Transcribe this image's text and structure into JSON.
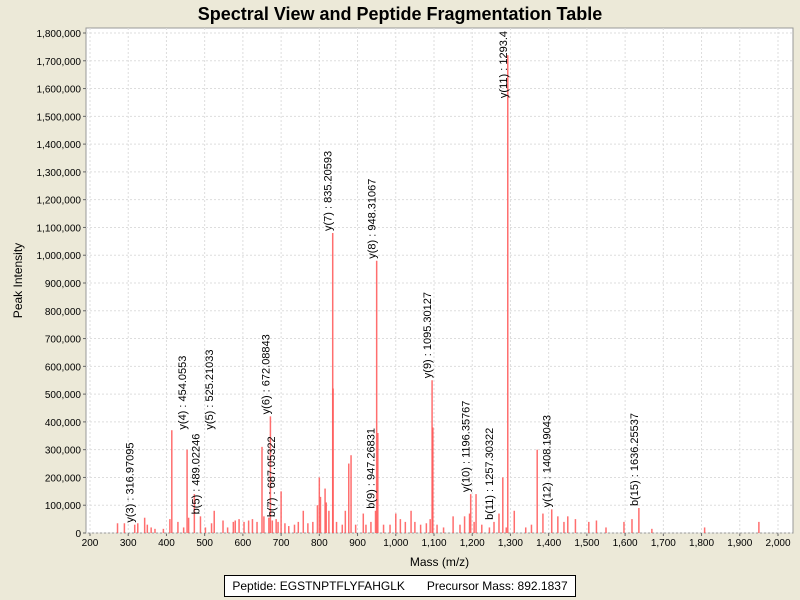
{
  "chart_data": {
    "type": "bar",
    "title": "Spectral View and Peptide Fragmentation Table",
    "xlabel": "Mass (m/z)",
    "ylabel": "Peak Intensity",
    "xlim": [
      180,
      2010
    ],
    "ylim": [
      0,
      1830000
    ],
    "xticks": [
      200,
      300,
      400,
      500,
      600,
      700,
      800,
      900,
      1000,
      1100,
      1200,
      1300,
      1400,
      1500,
      1600,
      1700,
      1800,
      1900,
      2000
    ],
    "xtick_labels": [
      "200",
      "300",
      "400",
      "500",
      "600",
      "700",
      "800",
      "900",
      "1,000",
      "1,100",
      "1,200",
      "1,300",
      "1,400",
      "1,500",
      "1,600",
      "1,700",
      "1,800",
      "1,900",
      "2,000"
    ],
    "yticks": [
      0,
      100000,
      200000,
      300000,
      400000,
      500000,
      600000,
      700000,
      800000,
      900000,
      1000000,
      1100000,
      1200000,
      1300000,
      1400000,
      1500000,
      1600000,
      1700000,
      1800000
    ],
    "ytick_labels": [
      "0",
      "100,000",
      "200,000",
      "300,000",
      "400,000",
      "500,000",
      "600,000",
      "700,000",
      "800,000",
      "900,000",
      "1,000,000",
      "1,100,000",
      "1,200,000",
      "1,300,000",
      "1,400,000",
      "1,500,000",
      "1,600,000",
      "1,700,000",
      "1,800,000"
    ],
    "grid": true,
    "peaks": [
      [
        272,
        35000
      ],
      [
        290,
        35000
      ],
      [
        317,
        30000
      ],
      [
        325,
        35000
      ],
      [
        343,
        55000
      ],
      [
        350,
        30000
      ],
      [
        360,
        20000
      ],
      [
        370,
        15000
      ],
      [
        392,
        15000
      ],
      [
        409,
        50000
      ],
      [
        414,
        370000
      ],
      [
        430,
        40000
      ],
      [
        445,
        20000
      ],
      [
        454,
        300000
      ],
      [
        458,
        55000
      ],
      [
        473,
        140000
      ],
      [
        489,
        60000
      ],
      [
        502,
        20000
      ],
      [
        518,
        35000
      ],
      [
        525,
        80000
      ],
      [
        548,
        45000
      ],
      [
        560,
        20000
      ],
      [
        575,
        40000
      ],
      [
        580,
        45000
      ],
      [
        590,
        50000
      ],
      [
        603,
        40000
      ],
      [
        615,
        45000
      ],
      [
        625,
        50000
      ],
      [
        637,
        40000
      ],
      [
        650,
        310000
      ],
      [
        655,
        60000
      ],
      [
        668,
        55000
      ],
      [
        672,
        420000
      ],
      [
        677,
        45000
      ],
      [
        687,
        50000
      ],
      [
        692,
        40000
      ],
      [
        700,
        150000
      ],
      [
        710,
        35000
      ],
      [
        720,
        25000
      ],
      [
        735,
        30000
      ],
      [
        745,
        40000
      ],
      [
        758,
        80000
      ],
      [
        770,
        35000
      ],
      [
        783,
        40000
      ],
      [
        795,
        100000
      ],
      [
        800,
        200000
      ],
      [
        803,
        130000
      ],
      [
        815,
        160000
      ],
      [
        818,
        110000
      ],
      [
        825,
        80000
      ],
      [
        835,
        1080000
      ],
      [
        836,
        520000
      ],
      [
        845,
        40000
      ],
      [
        860,
        30000
      ],
      [
        868,
        80000
      ],
      [
        877,
        250000
      ],
      [
        883,
        280000
      ],
      [
        895,
        30000
      ],
      [
        915,
        70000
      ],
      [
        922,
        30000
      ],
      [
        935,
        40000
      ],
      [
        947,
        80000
      ],
      [
        950,
        980000
      ],
      [
        953,
        360000
      ],
      [
        968,
        30000
      ],
      [
        985,
        30000
      ],
      [
        1000,
        70000
      ],
      [
        1012,
        50000
      ],
      [
        1025,
        40000
      ],
      [
        1040,
        80000
      ],
      [
        1050,
        40000
      ],
      [
        1065,
        30000
      ],
      [
        1080,
        35000
      ],
      [
        1090,
        50000
      ],
      [
        1095,
        550000
      ],
      [
        1097,
        380000
      ],
      [
        1108,
        30000
      ],
      [
        1125,
        20000
      ],
      [
        1150,
        60000
      ],
      [
        1168,
        30000
      ],
      [
        1180,
        60000
      ],
      [
        1193,
        70000
      ],
      [
        1196,
        140000
      ],
      [
        1205,
        40000
      ],
      [
        1210,
        140000
      ],
      [
        1225,
        30000
      ],
      [
        1245,
        20000
      ],
      [
        1257,
        40000
      ],
      [
        1270,
        70000
      ],
      [
        1280,
        200000
      ],
      [
        1289,
        20000
      ],
      [
        1293,
        1720000
      ],
      [
        1310,
        80000
      ],
      [
        1340,
        20000
      ],
      [
        1355,
        30000
      ],
      [
        1370,
        300000
      ],
      [
        1385,
        70000
      ],
      [
        1408,
        85000
      ],
      [
        1424,
        60000
      ],
      [
        1440,
        40000
      ],
      [
        1450,
        60000
      ],
      [
        1470,
        50000
      ],
      [
        1505,
        40000
      ],
      [
        1525,
        45000
      ],
      [
        1550,
        20000
      ],
      [
        1597,
        40000
      ],
      [
        1618,
        50000
      ],
      [
        1636,
        90000
      ],
      [
        1670,
        15000
      ],
      [
        1808,
        20000
      ],
      [
        1950,
        40000
      ]
    ],
    "annotations": [
      {
        "label": "y(3) : 316.97095",
        "mz": 317,
        "y": 30000
      },
      {
        "label": "y(4) : 454.0553",
        "mz": 454,
        "y": 300000
      },
      {
        "label": "b(5) : 489.02246",
        "mz": 489,
        "y": 60000
      },
      {
        "label": "y(5) : 525.21033",
        "mz": 525,
        "y": 80000
      },
      {
        "label": "y(6) : 672.08843",
        "mz": 672,
        "y": 420000
      },
      {
        "label": "b(7) : 687.05322",
        "mz": 687,
        "y": 50000
      },
      {
        "label": "y(7) : 835.20593",
        "mz": 835,
        "y": 1080000
      },
      {
        "label": "b(9) : 947.26831",
        "mz": 947,
        "y": 80000
      },
      {
        "label": "y(8) : 948.31067",
        "mz": 950,
        "y": 980000
      },
      {
        "label": "y(9) : 1095.30127",
        "mz": 1095,
        "y": 550000
      },
      {
        "label": "y(10) : 1196.35767",
        "mz": 1196,
        "y": 140000
      },
      {
        "label": "b(11) : 1257.30322",
        "mz": 1257,
        "y": 40000
      },
      {
        "label": "y(11) : 1293.4",
        "mz": 1293,
        "y": 1720000
      },
      {
        "label": "y(12) : 1408.19043",
        "mz": 1408,
        "y": 85000
      },
      {
        "label": "b(15) : 1636.25537",
        "mz": 1636,
        "y": 90000
      }
    ],
    "bar_color": "#FF5555"
  },
  "legend": {
    "peptide": "Peptide: EGSTNPTFLYFAHGLK",
    "precursor": "Precursor Mass: 892.1837"
  }
}
